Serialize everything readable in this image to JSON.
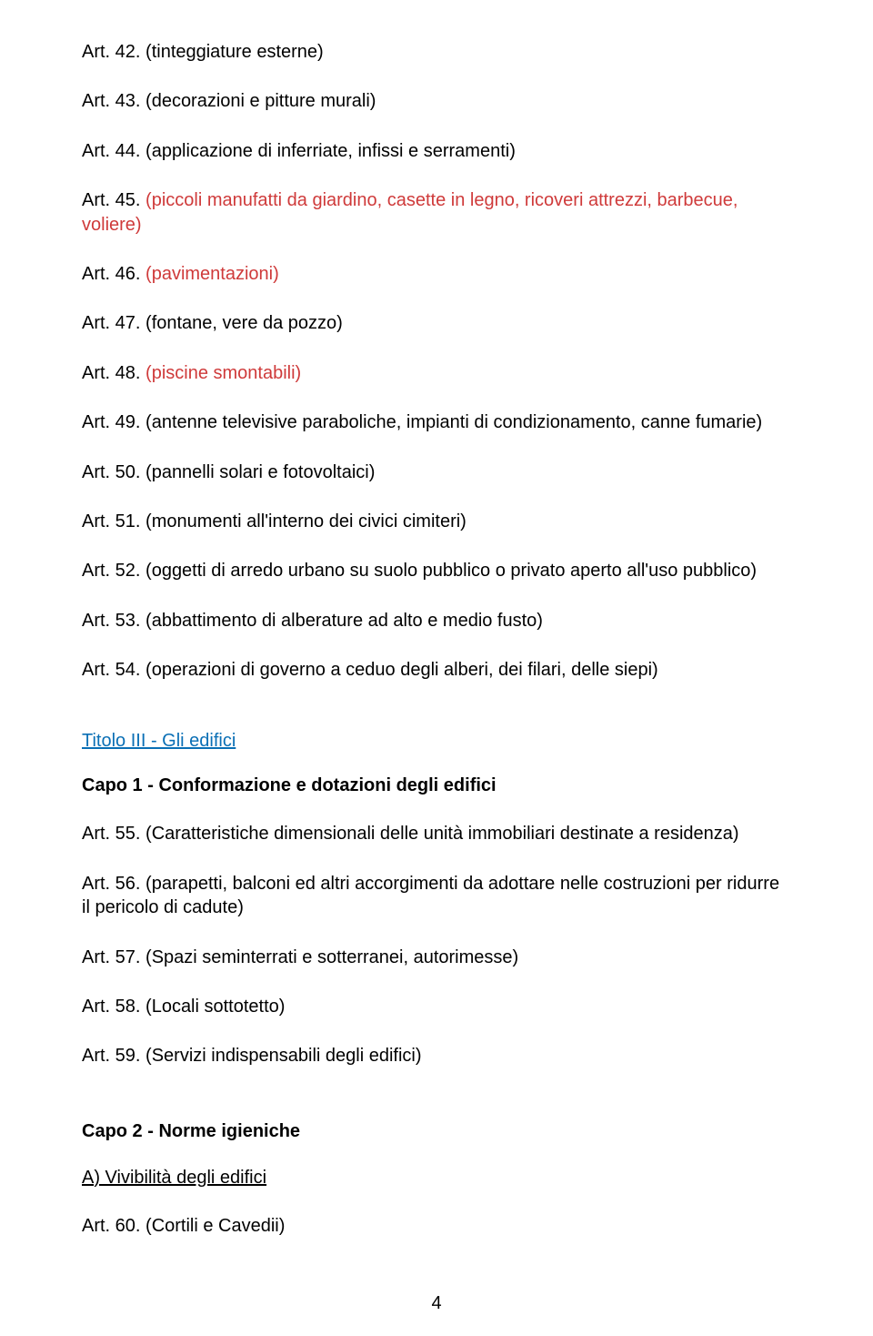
{
  "articles_top": [
    {
      "num": "Art. 42.",
      "title": "(tinteggiature esterne)",
      "arate": false
    },
    {
      "num": "Art. 43.",
      "title": "(decorazioni e pitture murali)",
      "arate": false
    },
    {
      "num": "Art. 44.",
      "title": "(applicazione di inferriate, infissi e serramenti)",
      "arate": false
    },
    {
      "num": "Art. 45.",
      "title": "(piccoli manufatti da giardino, casette in legno, ricoveri attrezzi, barbecue, voliere)",
      "arate": true
    },
    {
      "num": "Art. 46.",
      "title": "(pavimentazioni)",
      "arate": true
    },
    {
      "num": "Art. 47.",
      "title": "(fontane, vere da pozzo)",
      "arate": false
    },
    {
      "num": "Art. 48.",
      "title": "(piscine smontabili)",
      "arate": true
    },
    {
      "num": "Art. 49.",
      "title": "(antenne televisive paraboliche, impianti di condizionamento, canne fumarie)",
      "arate": false
    },
    {
      "num": "Art. 50.",
      "title": "(pannelli solari e fotovoltaici)",
      "arate": false
    },
    {
      "num": "Art. 51.",
      "title": "(monumenti all'interno dei civici cimiteri)",
      "arate": false
    },
    {
      "num": "Art. 52.",
      "title": "(oggetti di arredo urbano su suolo pubblico o privato aperto all'uso pubblico)",
      "arate": false
    },
    {
      "num": "Art. 53.",
      "title": "(abbattimento di alberature ad alto e medio fusto)",
      "arate": false
    },
    {
      "num": "Art. 54.",
      "title": "(operazioni di governo a ceduo degli alberi, dei filari, delle siepi)",
      "arate": false
    }
  ],
  "titolo3": "Titolo III - Gli edifici",
  "capo1": "Capo 1 - Conformazione e dotazioni degli edifici",
  "articles_capo1": [
    {
      "num": "Art. 55.",
      "title": "(Caratteristiche dimensionali delle unità immobiliari destinate a residenza)"
    },
    {
      "num": "Art. 56.",
      "title": "(parapetti, balconi ed altri accorgimenti da adottare nelle costruzioni per ridurre il pericolo di cadute)"
    },
    {
      "num": "Art. 57.",
      "title": "(Spazi seminterrati e sotterranei, autorimesse)"
    },
    {
      "num": "Art. 58.",
      "title": "(Locali sottotetto)"
    },
    {
      "num": "Art. 59.",
      "title": "(Servizi indispensabili degli edifici)"
    }
  ],
  "capo2": "Capo 2 - Norme igieniche",
  "sectionA": "A) Vivibilità degli edifici",
  "articles_capo2": [
    {
      "num": "Art. 60.",
      "title": "(Cortili e Cavedii)"
    }
  ],
  "page_number": "4",
  "colors": {
    "black": "#000000",
    "arate": "#cf3a3a",
    "link": "#0a6fb5",
    "bg": "#ffffff"
  }
}
